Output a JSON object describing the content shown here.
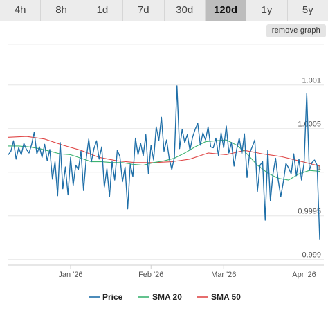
{
  "tabs": [
    {
      "label": "4h",
      "active": false
    },
    {
      "label": "8h",
      "active": false
    },
    {
      "label": "1d",
      "active": false
    },
    {
      "label": "7d",
      "active": false
    },
    {
      "label": "30d",
      "active": false
    },
    {
      "label": "120d",
      "active": true
    },
    {
      "label": "1y",
      "active": false
    },
    {
      "label": "5y",
      "active": false
    }
  ],
  "remove_graph_label": "remove graph",
  "chart_data": {
    "type": "line",
    "x_range": [
      "2025-12-08",
      "2026-04-07"
    ],
    "x_ticks": [
      {
        "date": "2026-01-01",
        "label": "Jan '26"
      },
      {
        "date": "2026-02-01",
        "label": "Feb '26"
      },
      {
        "date": "2026-03-01",
        "label": "Mar '26"
      },
      {
        "date": "2026-04-01",
        "label": "Apr '26"
      }
    ],
    "ylim": [
      0.99895,
      1.00145
    ],
    "y_ticks": [
      {
        "value": 1.001,
        "label": "1.001"
      },
      {
        "value": 1.0005,
        "label": "1.0005"
      },
      {
        "value": 1.0,
        "label": "1"
      },
      {
        "value": 0.9995,
        "label": "0.9995"
      },
      {
        "value": 0.999,
        "label": "0.999"
      }
    ],
    "grid": true,
    "legend_position": "bottom",
    "series": [
      {
        "name": "Price",
        "color": "#1f6fa8",
        "x": [
          "2025-12-08",
          "2025-12-09",
          "2025-12-10",
          "2025-12-11",
          "2025-12-12",
          "2025-12-13",
          "2025-12-14",
          "2025-12-15",
          "2025-12-16",
          "2025-12-17",
          "2025-12-18",
          "2025-12-19",
          "2025-12-20",
          "2025-12-21",
          "2025-12-22",
          "2025-12-23",
          "2025-12-24",
          "2025-12-25",
          "2025-12-26",
          "2025-12-27",
          "2025-12-28",
          "2025-12-29",
          "2025-12-30",
          "2025-12-31",
          "2026-01-01",
          "2026-01-02",
          "2026-01-03",
          "2026-01-04",
          "2026-01-05",
          "2026-01-06",
          "2026-01-07",
          "2026-01-08",
          "2026-01-09",
          "2026-01-10",
          "2026-01-11",
          "2026-01-12",
          "2026-01-13",
          "2026-01-14",
          "2026-01-15",
          "2026-01-16",
          "2026-01-17",
          "2026-01-18",
          "2026-01-19",
          "2026-01-20",
          "2026-01-21",
          "2026-01-22",
          "2026-01-23",
          "2026-01-24",
          "2026-01-25",
          "2026-01-26",
          "2026-01-27",
          "2026-01-28",
          "2026-01-29",
          "2026-01-30",
          "2026-01-31",
          "2026-02-01",
          "2026-02-02",
          "2026-02-03",
          "2026-02-04",
          "2026-02-05",
          "2026-02-06",
          "2026-02-07",
          "2026-02-08",
          "2026-02-09",
          "2026-02-10",
          "2026-02-11",
          "2026-02-12",
          "2026-02-13",
          "2026-02-14",
          "2026-02-15",
          "2026-02-16",
          "2026-02-17",
          "2026-02-18",
          "2026-02-19",
          "2026-02-20",
          "2026-02-21",
          "2026-02-22",
          "2026-02-23",
          "2026-02-24",
          "2026-02-25",
          "2026-02-26",
          "2026-02-27",
          "2026-02-28",
          "2026-03-01",
          "2026-03-02",
          "2026-03-03",
          "2026-03-04",
          "2026-03-05",
          "2026-03-06",
          "2026-03-07",
          "2026-03-08",
          "2026-03-09",
          "2026-03-10",
          "2026-03-11",
          "2026-03-12",
          "2026-03-13",
          "2026-03-14",
          "2026-03-15",
          "2026-03-16",
          "2026-03-17",
          "2026-03-18",
          "2026-03-19",
          "2026-03-20",
          "2026-03-21",
          "2026-03-22",
          "2026-03-23",
          "2026-03-24",
          "2026-03-25",
          "2026-03-26",
          "2026-03-27",
          "2026-03-28",
          "2026-03-29",
          "2026-03-30",
          "2026-03-31",
          "2026-04-01",
          "2026-04-02",
          "2026-04-03",
          "2026-04-04",
          "2026-04-05",
          "2026-04-06",
          "2026-04-07"
        ],
        "values": [
          1.0002,
          1.00024,
          1.00036,
          1.00015,
          1.00028,
          1.0002,
          1.00033,
          1.00026,
          1.00022,
          1.00032,
          1.00046,
          1.00021,
          1.00029,
          1.00017,
          1.00032,
          1.00013,
          1.00026,
          0.99992,
          1.00012,
          0.99973,
          1.00034,
          0.99981,
          1.00006,
          0.99974,
          1.00017,
          0.99985,
          1.00008,
          1.00003,
          1.00024,
          0.99979,
          1.00015,
          1.00038,
          1.00012,
          1.00027,
          1.00036,
          1.00015,
          1.00029,
          0.99983,
          1.00004,
          0.99972,
          1.00012,
          0.99991,
          1.00025,
          1.00018,
          0.99989,
          1.00006,
          0.99958,
          1.00009,
          0.99995,
          1.00039,
          1.0002,
          1.00033,
          1.00019,
          1.00043,
          0.99998,
          1.00031,
          1.00014,
          1.00052,
          1.00036,
          1.00063,
          1.00024,
          1.00037,
          1.00016,
          1.00003,
          1.00017,
          1.00099,
          1.00027,
          1.00049,
          1.00034,
          1.00043,
          1.00025,
          1.0004,
          1.00049,
          1.00056,
          1.00031,
          1.00045,
          1.00037,
          1.00052,
          1.00029,
          1.00028,
          1.00039,
          1.00019,
          1.00045,
          1.00028,
          1.00053,
          1.00022,
          1.00034,
          1.00007,
          1.00026,
          1.00039,
          1.00021,
          1.00044,
          0.99994,
          1.00022,
          1.00029,
          1.00037,
          0.99978,
          1.00008,
          1.00012,
          0.99945,
          1.00025,
          0.99967,
          0.99998,
          1.00016,
          0.99991,
          0.99972,
          0.99989,
          1.0001,
          1.00005,
          0.99998,
          1.00021,
          0.99996,
          1.00015,
          0.99991,
          1.00011,
          1.0009,
          1.00002,
          1.00011,
          1.00014,
          1.00008,
          0.99923
        ]
      },
      {
        "name": "SMA 20",
        "color": "#3cb371",
        "x": [
          "2025-12-08",
          "2025-12-12",
          "2025-12-16",
          "2025-12-20",
          "2025-12-24",
          "2025-12-28",
          "2026-01-01",
          "2026-01-05",
          "2026-01-09",
          "2026-01-13",
          "2026-01-17",
          "2026-01-21",
          "2026-01-25",
          "2026-01-29",
          "2026-02-02",
          "2026-02-06",
          "2026-02-10",
          "2026-02-14",
          "2026-02-18",
          "2026-02-22",
          "2026-02-26",
          "2026-03-02",
          "2026-03-06",
          "2026-03-10",
          "2026-03-14",
          "2026-03-18",
          "2026-03-22",
          "2026-03-26",
          "2026-03-30",
          "2026-04-03",
          "2026-04-07"
        ],
        "values": [
          1.0003,
          1.0003,
          1.00029,
          1.00027,
          1.00024,
          1.00021,
          1.0002,
          1.00016,
          1.00012,
          1.00012,
          1.00011,
          1.00011,
          1.00009,
          1.00008,
          1.00011,
          1.00013,
          1.00016,
          1.00022,
          1.00029,
          1.00035,
          1.00036,
          1.00037,
          1.00031,
          1.00021,
          1.00008,
          0.99999,
          0.99993,
          0.99991,
          0.99998,
          1.00002,
          1.00001
        ]
      },
      {
        "name": "SMA 50",
        "color": "#e04848",
        "x": [
          "2025-12-08",
          "2025-12-15",
          "2025-12-22",
          "2025-12-29",
          "2026-01-05",
          "2026-01-12",
          "2026-01-19",
          "2026-01-26",
          "2026-02-02",
          "2026-02-09",
          "2026-02-16",
          "2026-02-23",
          "2026-03-02",
          "2026-03-09",
          "2026-03-16",
          "2026-03-23",
          "2026-03-30",
          "2026-04-07"
        ],
        "values": [
          1.0004,
          1.00041,
          1.00038,
          1.00031,
          1.00025,
          1.00017,
          1.00013,
          1.00011,
          1.00011,
          1.00012,
          1.00015,
          1.00022,
          1.0002,
          1.00025,
          1.00021,
          1.00018,
          1.00013,
          1.00007
        ]
      }
    ]
  }
}
